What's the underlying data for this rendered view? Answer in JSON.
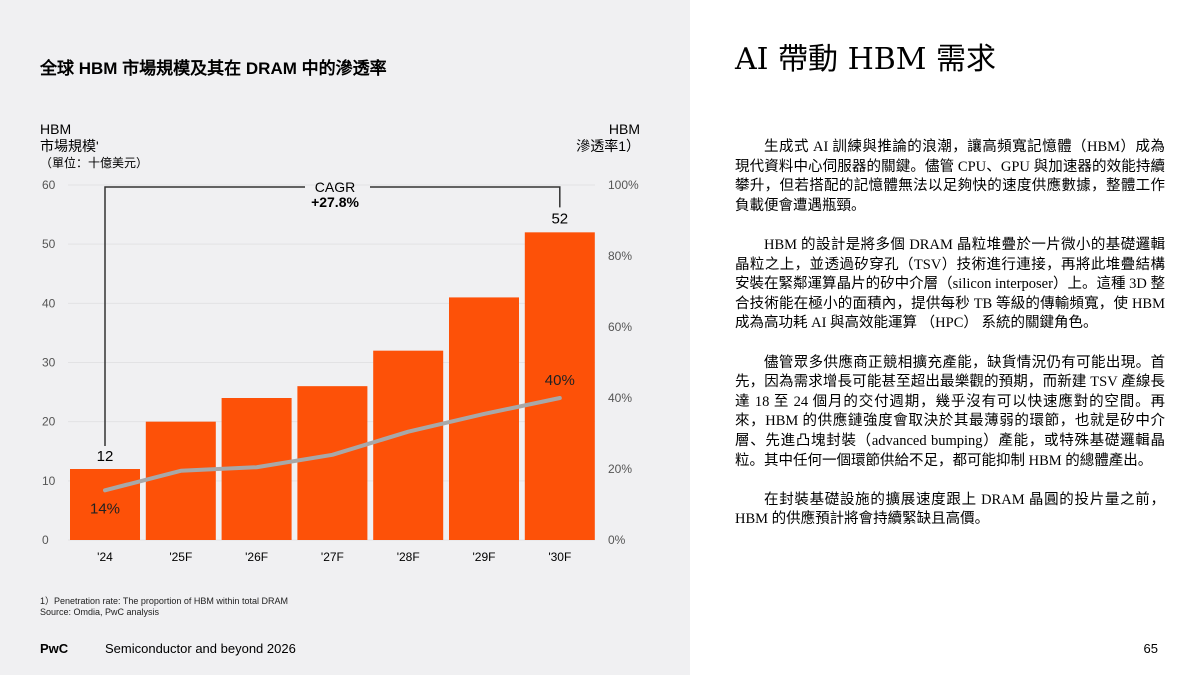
{
  "colors": {
    "bar": "#fd5108",
    "line": "#a8a8a8",
    "panel": "#f0f0f2"
  },
  "chart_data": {
    "type": "bar",
    "title": "全球 HBM 市場規模及其在 DRAM 中的滲透率",
    "left_axis_label": [
      "HBM",
      "市場規模'",
      "（單位：十億美元）"
    ],
    "right_axis_label": [
      "HBM",
      "滲透率1）"
    ],
    "categories": [
      "'24",
      "'25F",
      "'26F",
      "'27F",
      "'28F",
      "'29F",
      "'30F"
    ],
    "series": [
      {
        "name": "HBM 市場規模",
        "type": "bar",
        "axis": "left",
        "values": [
          12,
          20,
          24,
          26,
          32,
          41,
          52
        ]
      },
      {
        "name": "HBM 滲透率",
        "type": "line",
        "axis": "right",
        "values": [
          14,
          19.5,
          20.5,
          24,
          30.5,
          35.5,
          40
        ]
      }
    ],
    "data_labels": {
      "bar_first": "12",
      "bar_last": "52",
      "line_first": "14%",
      "line_last": "40%"
    },
    "ylim": [
      0,
      60
    ],
    "yticks": [
      "0",
      "10",
      "20",
      "30",
      "40",
      "50",
      "60"
    ],
    "y2lim": [
      0,
      100
    ],
    "y2ticks": [
      "0%",
      "20%",
      "40%",
      "60%",
      "80%",
      "100%"
    ],
    "annotation": {
      "label": "CAGR",
      "value": "+27.8%"
    },
    "grid": true
  },
  "footnote": [
    "1）Penetration rate: The proportion of HBM within total DRAM",
    "Source: Omdia, PwC analysis"
  ],
  "footer": {
    "brand": "PwC",
    "report": "Semiconductor and beyond 2026",
    "page": "65"
  },
  "article": {
    "heading": "AI 帶動 HBM 需求",
    "paragraphs": [
      "生成式 AI 訓練與推論的浪潮，讓高頻寬記憶體（HBM）成為現代資料中心伺服器的關鍵。儘管 CPU、GPU 與加速器的效能持續攀升，但若搭配的記憶體無法以足夠快的速度供應數據，整體工作負載便會遭遇瓶頸。",
      "HBM 的設計是將多個 DRAM 晶粒堆疊於一片微小的基礎邏輯晶粒之上，並透過矽穿孔（TSV）技術進行連接，再將此堆疊結構安裝在緊鄰運算晶片的矽中介層（silicon interposer）上。這種 3D 整合技術能在極小的面積內，提供每秒 TB 等級的傳輸頻寬，使 HBM 成為高功耗 AI 與高效能運算 （HPC） 系統的關鍵角色。",
      "儘管眾多供應商正競相擴充產能，缺貨情況仍有可能出現。首先，因為需求增長可能甚至超出最樂觀的預期，而新建 TSV 產線長達 18 至 24 個月的交付週期，幾乎沒有可以快速應對的空間。再來，HBM 的供應鏈強度會取決於其最薄弱的環節，也就是矽中介層、先進凸塊封裝（advanced bumping）產能，或特殊基礎邏輯晶粒。其中任何一個環節供給不足，都可能抑制 HBM 的總體產出。",
      "在封裝基礎設施的擴展速度跟上 DRAM 晶圓的投片量之前，HBM 的供應預計將會持續緊缺且高價。"
    ]
  }
}
